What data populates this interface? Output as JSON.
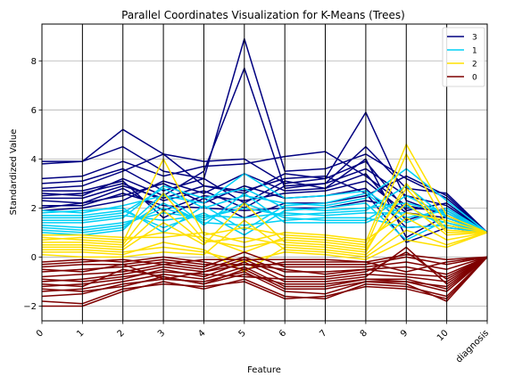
{
  "chart_data": {
    "type": "line",
    "title": "Parallel Coordinates Visualization for K-Means (Trees)",
    "xlabel": "Feature",
    "ylabel": "Standardized Value",
    "categories": [
      "0",
      "1",
      "2",
      "3",
      "4",
      "5",
      "6",
      "7",
      "8",
      "9",
      "10",
      "diagnosis"
    ],
    "ylim": [
      -2.6,
      9.5
    ],
    "yticks": [
      -2,
      0,
      2,
      4,
      6,
      8
    ],
    "grid": true,
    "legend_position": "top-right",
    "legend_order": [
      "3",
      "1",
      "2",
      "0"
    ],
    "series": [
      {
        "name": "3",
        "color": "#000080",
        "lines": [
          [
            3.8,
            3.9,
            5.2,
            4.2,
            3.9,
            4.0,
            3.0,
            3.2,
            5.9,
            2.3,
            1.7,
            1.0
          ],
          [
            3.9,
            3.9,
            4.5,
            3.5,
            3.2,
            8.9,
            3.5,
            3.6,
            4.2,
            3.2,
            2.4,
            1.0
          ],
          [
            2.6,
            2.5,
            3.2,
            2.5,
            3.5,
            7.7,
            2.8,
            3.0,
            4.5,
            2.8,
            2.6,
            1.0
          ],
          [
            3.2,
            3.3,
            3.9,
            3.3,
            3.7,
            3.8,
            4.1,
            4.3,
            3.3,
            2.1,
            1.8,
            1.0
          ],
          [
            2.8,
            2.9,
            3.5,
            4.2,
            2.9,
            2.6,
            3.4,
            3.2,
            3.9,
            1.9,
            2.2,
            1.0
          ],
          [
            2.5,
            2.6,
            3.0,
            2.3,
            2.7,
            2.0,
            2.9,
            3.0,
            3.6,
            2.5,
            2.1,
            1.0
          ],
          [
            2.3,
            2.2,
            2.8,
            1.9,
            2.5,
            2.3,
            2.6,
            2.7,
            3.1,
            1.8,
            1.6,
            1.0
          ],
          [
            2.0,
            2.2,
            2.5,
            3.0,
            2.2,
            2.9,
            2.4,
            2.5,
            2.8,
            1.2,
            1.3,
            1.0
          ],
          [
            3.0,
            3.1,
            3.6,
            2.7,
            3.2,
            2.2,
            3.1,
            2.8,
            4.0,
            0.8,
            1.7,
            1.0
          ],
          [
            2.7,
            2.7,
            3.1,
            1.6,
            2.4,
            1.6,
            2.2,
            2.2,
            2.5,
            3.3,
            2.5,
            1.0
          ],
          [
            2.1,
            2.1,
            2.6,
            2.1,
            2.0,
            1.9,
            2.0,
            2.0,
            2.3,
            2.0,
            1.9,
            1.0
          ],
          [
            1.9,
            2.0,
            2.3,
            3.1,
            2.6,
            3.4,
            2.7,
            2.8,
            3.4,
            1.5,
            2.0,
            1.0
          ],
          [
            2.4,
            2.4,
            2.9,
            2.4,
            2.9,
            2.7,
            3.2,
            3.3,
            2.6,
            0.6,
            1.2,
            1.0
          ]
        ]
      },
      {
        "name": "1",
        "color": "#00d0f5",
        "lines": [
          [
            1.9,
            1.8,
            2.1,
            2.5,
            2.2,
            3.4,
            2.4,
            2.5,
            2.7,
            1.6,
            1.9,
            1.0
          ],
          [
            1.6,
            1.6,
            1.8,
            2.8,
            2.0,
            2.5,
            2.2,
            2.1,
            2.4,
            3.6,
            2.3,
            1.0
          ],
          [
            1.3,
            1.2,
            1.4,
            1.8,
            1.6,
            2.0,
            1.7,
            1.8,
            1.9,
            2.9,
            1.6,
            1.0
          ],
          [
            1.1,
            1.0,
            1.2,
            2.2,
            1.4,
            1.3,
            1.5,
            1.6,
            1.6,
            1.2,
            1.3,
            1.0
          ],
          [
            1.7,
            1.7,
            1.9,
            1.2,
            1.8,
            0.9,
            1.9,
            2.0,
            2.2,
            0.7,
            1.5,
            1.0
          ],
          [
            1.4,
            1.4,
            1.6,
            2.9,
            2.4,
            2.8,
            2.0,
            1.9,
            2.0,
            2.2,
            1.8,
            1.0
          ],
          [
            1.5,
            1.5,
            1.7,
            1.5,
            1.7,
            1.6,
            1.8,
            1.7,
            1.8,
            1.8,
            1.4,
            1.0
          ],
          [
            1.2,
            1.1,
            1.3,
            2.0,
            1.5,
            2.2,
            1.6,
            1.5,
            1.5,
            2.5,
            1.7,
            1.0
          ],
          [
            1.8,
            1.9,
            2.0,
            1.0,
            2.1,
            1.1,
            2.1,
            2.2,
            2.6,
            1.4,
            2.0,
            1.0
          ],
          [
            1.0,
            0.9,
            1.1,
            2.6,
            1.3,
            2.6,
            1.4,
            1.4,
            1.4,
            2.1,
            1.2,
            1.0
          ]
        ]
      },
      {
        "name": "2",
        "color": "#ffe000",
        "lines": [
          [
            0.8,
            0.7,
            0.6,
            4.0,
            0.9,
            1.2,
            0.9,
            0.8,
            0.6,
            4.6,
            1.7,
            1.0
          ],
          [
            0.6,
            0.6,
            0.5,
            2.6,
            0.7,
            0.4,
            0.7,
            0.6,
            0.4,
            4.2,
            1.3,
            1.0
          ],
          [
            0.4,
            0.4,
            0.3,
            1.4,
            0.5,
            2.2,
            0.6,
            0.5,
            0.3,
            2.8,
            1.0,
            1.0
          ],
          [
            0.2,
            0.2,
            0.1,
            0.6,
            0.3,
            -0.6,
            0.4,
            0.3,
            0.1,
            1.6,
            0.7,
            1.0
          ],
          [
            0.7,
            0.8,
            0.7,
            1.0,
            0.8,
            0.2,
            0.8,
            0.7,
            0.5,
            2.2,
            0.9,
            1.0
          ],
          [
            0.1,
            0.0,
            0.0,
            0.2,
            0.1,
            1.5,
            0.3,
            0.2,
            0.0,
            1.1,
            0.5,
            1.0
          ],
          [
            0.5,
            0.5,
            0.4,
            1.9,
            0.6,
            0.8,
            0.5,
            0.4,
            0.2,
            3.0,
            1.1,
            1.0
          ],
          [
            0.3,
            0.3,
            0.2,
            0.4,
            0.2,
            -0.2,
            0.2,
            0.1,
            -0.1,
            0.7,
            0.4,
            1.0
          ],
          [
            0.9,
            0.9,
            0.8,
            0.8,
            1.0,
            0.6,
            1.0,
            0.9,
            0.7,
            1.8,
            1.5,
            1.0
          ]
        ]
      },
      {
        "name": "0",
        "color": "#7f0000",
        "lines": [
          [
            -1.8,
            -1.9,
            -1.3,
            -1.1,
            -1.2,
            -1.0,
            -1.7,
            -1.6,
            -1.2,
            -1.3,
            -1.7,
            0.0
          ],
          [
            -2.0,
            -2.0,
            -1.4,
            -1.0,
            -1.3,
            -0.9,
            -1.6,
            -1.7,
            -1.1,
            -1.2,
            -1.6,
            0.0
          ],
          [
            -1.6,
            -1.5,
            -1.1,
            -0.9,
            -1.0,
            -0.6,
            -1.4,
            -1.5,
            -1.0,
            -1.1,
            -1.8,
            0.0
          ],
          [
            -1.4,
            -1.3,
            -1.0,
            -0.7,
            -0.9,
            -0.4,
            -1.2,
            -1.2,
            -0.9,
            -0.9,
            -1.3,
            0.0
          ],
          [
            -1.2,
            -1.1,
            -0.9,
            -0.5,
            -0.8,
            -0.2,
            -1.0,
            -1.0,
            -0.8,
            0.4,
            -1.1,
            0.0
          ],
          [
            -1.0,
            -0.9,
            -0.7,
            -0.4,
            -0.6,
            -0.1,
            -0.8,
            -0.8,
            -0.6,
            0.2,
            -0.9,
            0.0
          ],
          [
            -0.8,
            -0.7,
            -0.6,
            -0.3,
            -0.5,
            0.0,
            -0.6,
            -0.6,
            -0.5,
            -0.4,
            -0.7,
            0.0
          ],
          [
            -0.6,
            -0.5,
            -0.4,
            -0.2,
            -0.4,
            0.2,
            -0.4,
            -0.4,
            -0.4,
            -0.2,
            -0.5,
            0.0
          ],
          [
            -0.4,
            -0.3,
            -0.3,
            -0.1,
            -0.3,
            -0.3,
            -0.3,
            -0.3,
            -0.3,
            0.0,
            -0.3,
            0.0
          ],
          [
            -0.2,
            -0.1,
            -0.2,
            0.0,
            -0.2,
            -0.5,
            -0.2,
            -0.2,
            -0.2,
            -0.6,
            -0.2,
            0.0
          ],
          [
            -0.9,
            -1.0,
            -0.8,
            -0.6,
            -0.7,
            -0.8,
            -0.9,
            -0.9,
            -0.7,
            -0.8,
            -1.0,
            0.0
          ],
          [
            -1.1,
            -1.2,
            -0.5,
            -0.8,
            -1.1,
            -0.7,
            -1.1,
            -1.1,
            -0.9,
            -1.0,
            -1.2,
            0.0
          ],
          [
            -0.5,
            -0.6,
            -0.3,
            -0.9,
            -0.6,
            -0.3,
            -0.5,
            -0.7,
            -0.5,
            -0.7,
            -0.8,
            0.0
          ],
          [
            -1.3,
            -1.4,
            -1.2,
            -0.8,
            -1.1,
            -0.5,
            -1.3,
            -1.3,
            -1.0,
            -1.0,
            -1.4,
            0.0
          ],
          [
            -0.3,
            -0.2,
            -0.1,
            -0.3,
            -0.1,
            -0.1,
            -0.1,
            -0.1,
            -0.2,
            0.1,
            -0.1,
            0.0
          ]
        ]
      }
    ]
  }
}
